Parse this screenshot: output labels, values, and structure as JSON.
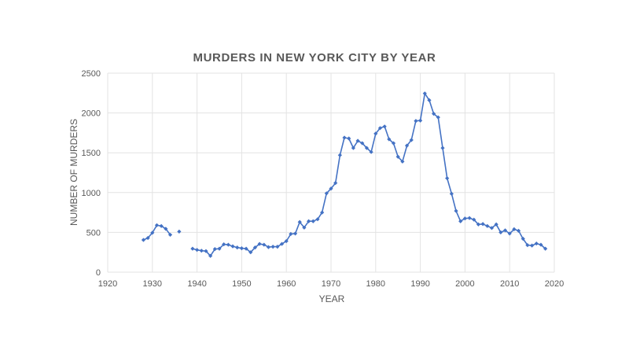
{
  "chart_data": {
    "type": "line",
    "title": "MURDERS IN NEW YORK CITY BY YEAR",
    "xlabel": "YEAR",
    "ylabel": "NUMBER OF MURDERS",
    "xlim": [
      1920,
      2020
    ],
    "ylim": [
      0,
      2500
    ],
    "xticks": [
      1920,
      1930,
      1940,
      1950,
      1960,
      1970,
      1980,
      1990,
      2000,
      2010,
      2020
    ],
    "yticks": [
      0,
      500,
      1000,
      1500,
      2000,
      2500
    ],
    "grid": true,
    "legend": "none",
    "color": "#4472c4",
    "series": [
      {
        "segments": [
          [
            [
              1928,
              405
            ],
            [
              1929,
              430
            ],
            [
              1930,
              495
            ],
            [
              1931,
              590
            ],
            [
              1932,
              580
            ],
            [
              1933,
              545
            ],
            [
              1934,
              470
            ]
          ],
          [
            [
              1936,
              510
            ]
          ],
          [
            [
              1939,
              295
            ],
            [
              1940,
              280
            ],
            [
              1941,
              270
            ],
            [
              1942,
              265
            ],
            [
              1943,
              205
            ],
            [
              1944,
              290
            ],
            [
              1945,
              295
            ],
            [
              1946,
              350
            ],
            [
              1947,
              345
            ],
            [
              1948,
              325
            ],
            [
              1949,
              310
            ],
            [
              1950,
              300
            ],
            [
              1951,
              295
            ],
            [
              1952,
              250
            ],
            [
              1953,
              310
            ],
            [
              1954,
              355
            ],
            [
              1955,
              345
            ],
            [
              1956,
              315
            ],
            [
              1957,
              320
            ],
            [
              1958,
              320
            ],
            [
              1959,
              355
            ],
            [
              1960,
              390
            ],
            [
              1961,
              480
            ],
            [
              1962,
              485
            ],
            [
              1963,
              630
            ],
            [
              1964,
              560
            ],
            [
              1965,
              640
            ],
            [
              1966,
              640
            ],
            [
              1967,
              665
            ],
            [
              1968,
              750
            ],
            [
              1969,
              990
            ],
            [
              1970,
              1050
            ],
            [
              1971,
              1120
            ],
            [
              1972,
              1470
            ],
            [
              1973,
              1690
            ],
            [
              1974,
              1680
            ],
            [
              1975,
              1560
            ],
            [
              1976,
              1650
            ],
            [
              1977,
              1620
            ],
            [
              1978,
              1560
            ],
            [
              1979,
              1510
            ],
            [
              1980,
              1740
            ],
            [
              1981,
              1810
            ],
            [
              1982,
              1830
            ],
            [
              1983,
              1670
            ],
            [
              1984,
              1620
            ],
            [
              1985,
              1450
            ],
            [
              1986,
              1390
            ],
            [
              1987,
              1590
            ],
            [
              1988,
              1660
            ],
            [
              1989,
              1900
            ],
            [
              1990,
              1905
            ],
            [
              1991,
              2245
            ],
            [
              1992,
              2160
            ],
            [
              1993,
              1990
            ],
            [
              1994,
              1945
            ],
            [
              1995,
              1560
            ],
            [
              1996,
              1180
            ],
            [
              1997,
              985
            ],
            [
              1998,
              770
            ],
            [
              1999,
              640
            ],
            [
              2000,
              675
            ],
            [
              2001,
              680
            ],
            [
              2002,
              660
            ],
            [
              2003,
              600
            ],
            [
              2004,
              605
            ],
            [
              2005,
              580
            ],
            [
              2006,
              555
            ],
            [
              2007,
              600
            ],
            [
              2008,
              500
            ],
            [
              2009,
              525
            ],
            [
              2010,
              485
            ],
            [
              2011,
              540
            ],
            [
              2012,
              520
            ],
            [
              2013,
              420
            ],
            [
              2014,
              340
            ],
            [
              2015,
              335
            ],
            [
              2016,
              360
            ],
            [
              2017,
              345
            ],
            [
              2018,
              295
            ]
          ]
        ]
      }
    ]
  }
}
